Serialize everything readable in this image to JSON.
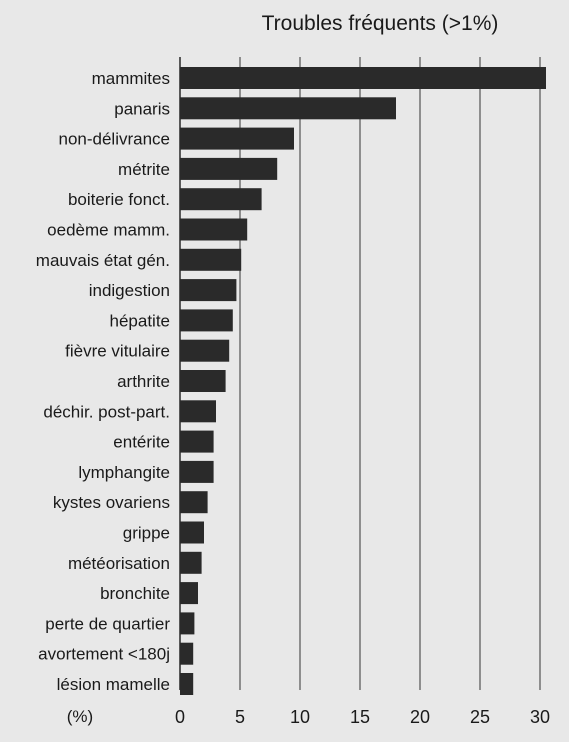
{
  "chart_data": {
    "type": "bar",
    "orientation": "horizontal",
    "title": "Troubles fréquents (>1%)",
    "xlabel": "(%)",
    "ylabel": "",
    "xlim": [
      0,
      30
    ],
    "x_ticks": [
      0,
      5,
      10,
      15,
      20,
      25,
      30
    ],
    "grid": "vertical gridlines at each tick",
    "categories": [
      "mammites",
      "panaris",
      "non-délivrance",
      "métrite",
      "boiterie fonct.",
      "oedème mamm.",
      "mauvais état gén.",
      "indigestion",
      "hépatite",
      "fièvre vitulaire",
      "arthrite",
      "déchir. post-part.",
      "entérite",
      "lymphangite",
      "kystes ovariens",
      "grippe",
      "météorisation",
      "bronchite",
      "perte de quartier",
      "avortement <180j",
      "lésion mamelle"
    ],
    "values": [
      30.5,
      18.0,
      9.5,
      8.1,
      6.8,
      5.6,
      5.1,
      4.7,
      4.4,
      4.1,
      3.8,
      3.0,
      2.8,
      2.8,
      2.3,
      2.0,
      1.8,
      1.5,
      1.2,
      1.1,
      1.1
    ],
    "colors": {
      "bar": "#2a2a2a",
      "grid": "#333333",
      "background": "#e8e8e8"
    }
  }
}
